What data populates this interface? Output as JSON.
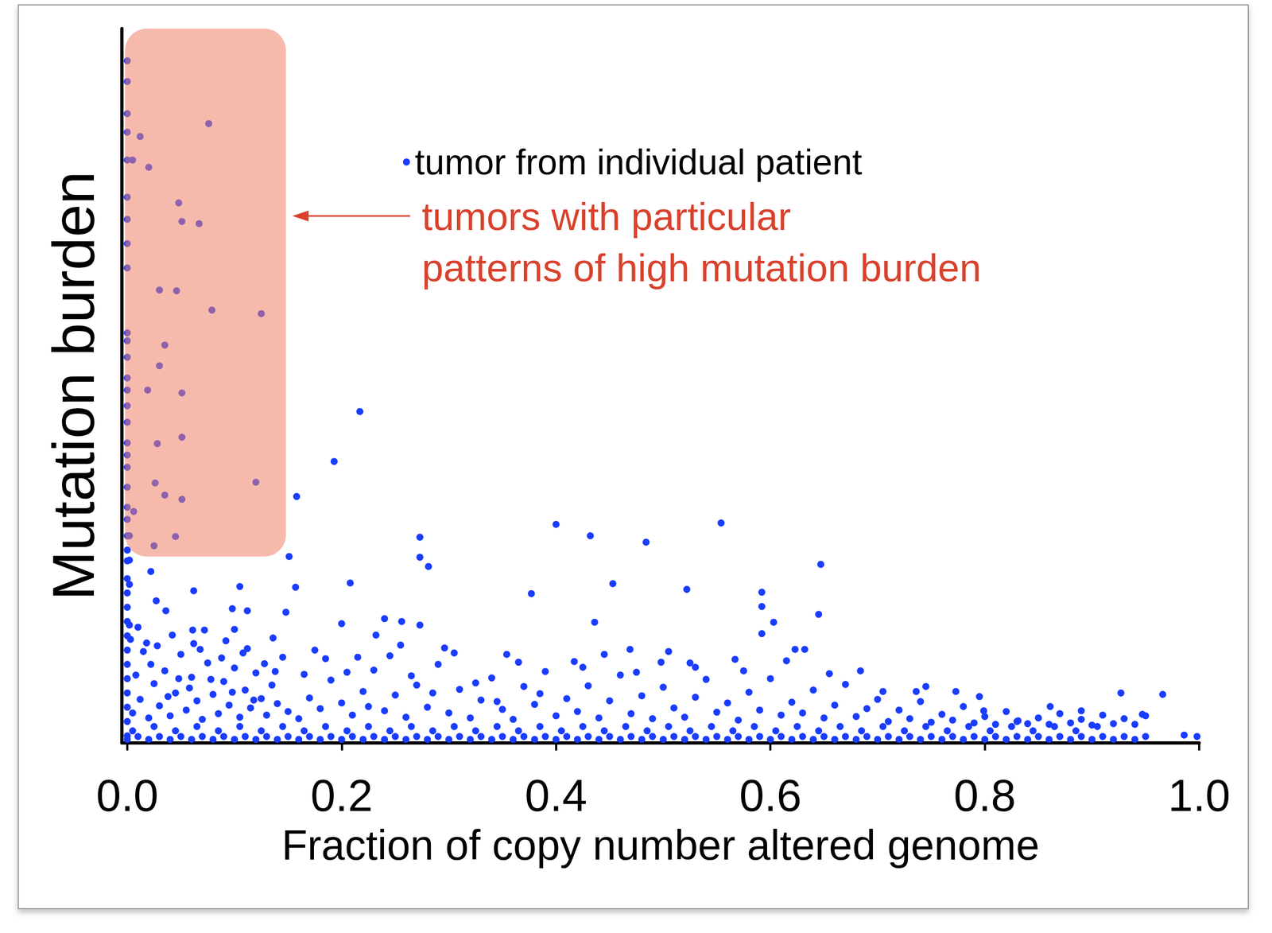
{
  "chart_data": {
    "type": "scatter",
    "xlabel": "Fraction of copy number altered genome",
    "ylabel": "Mutation burden",
    "xlim": [
      -0.005,
      1.0
    ],
    "xticks": [
      {
        "value": 0,
        "label": "0.0"
      },
      {
        "value": 0.2,
        "label": "0.2"
      },
      {
        "value": 0.4,
        "label": "0.4"
      },
      {
        "value": 0.6,
        "label": "0.6"
      },
      {
        "value": 0.8,
        "label": "0.8"
      },
      {
        "value": 1.0,
        "label": "1.0"
      }
    ],
    "ylim": [
      0,
      100
    ],
    "tick_labels": "x",
    "grid": false,
    "legend": "top",
    "annotations": [
      {
        "text": "tumors with particular\npatterns of high mutation burden",
        "color": "#d9412c",
        "x_range": [
          -0.002,
          0.148
        ],
        "y_range": [
          26.1,
          100
        ]
      }
    ],
    "series": [
      {
        "name": "tumor from individual patient",
        "color": "#1a3cff",
        "marker": "circle",
        "x": [
          0,
          0,
          0,
          0,
          0,
          0,
          0,
          0,
          0,
          0,
          0,
          0,
          0,
          0,
          0,
          0,
          0,
          0,
          0,
          0,
          0,
          0,
          0,
          0,
          0,
          0,
          0,
          0,
          0,
          0,
          0,
          0,
          0,
          0,
          0,
          0,
          0,
          0.076,
          0.012,
          0.005,
          0.02,
          0.048,
          0.051,
          0.067,
          0.03,
          0.046,
          0.079,
          0.125,
          0.035,
          0.03,
          0.019,
          0.051,
          0.028,
          0.051,
          0.026,
          0.035,
          0.051,
          0.12,
          0.045,
          0.025,
          0.006,
          0.217,
          0.193,
          0.158,
          0.151,
          0.273,
          0.273,
          0.281,
          0.208,
          0.157,
          0.062,
          0.105,
          0.4,
          0.432,
          0.484,
          0.554,
          0.647,
          0.453,
          0.522,
          0.377,
          0.592,
          0.592,
          0.645,
          0.436,
          0.592,
          0.603,
          0.022,
          0.027,
          0.036,
          0.098,
          0.112,
          0.148,
          0.2,
          0.24,
          0.256,
          0.273,
          0.002,
          0.002,
          0.002,
          0.002,
          0.061,
          0.1,
          0.136,
          0.232,
          0.296,
          0.354,
          0.417,
          0.469,
          0.498,
          0.53,
          0.567,
          0.623,
          0.632,
          0.684,
          0.736,
          0.773,
          0.927,
          0.966,
          0.947,
          0.89,
          0.861,
          0.831,
          0.799,
          0.986,
          0.998,
          0.005,
          0.012,
          0.02,
          0.025,
          0.03,
          0.035,
          0.04,
          0.045,
          0.05,
          0.055,
          0.06,
          0.065,
          0.07,
          0.075,
          0.08,
          0.085,
          0.09,
          0.095,
          0.1,
          0.105,
          0.11,
          0.115,
          0.12,
          0.125,
          0.13,
          0.135,
          0.14,
          0.145,
          0.15,
          0.008,
          0.015,
          0.022,
          0.028,
          0.038,
          0.048,
          0.058,
          0.068,
          0.078,
          0.088,
          0.098,
          0.108,
          0.118,
          0.003,
          0.01,
          0.018,
          0.042,
          0.062,
          0.072,
          0.092,
          0.112,
          0.128,
          0.138,
          0.16,
          0.17,
          0.18,
          0.19,
          0.2,
          0.21,
          0.22,
          0.23,
          0.24,
          0.25,
          0.26,
          0.27,
          0.28,
          0.29,
          0.3,
          0.31,
          0.32,
          0.33,
          0.34,
          0.35,
          0.36,
          0.37,
          0.38,
          0.39,
          0.4,
          0.165,
          0.185,
          0.205,
          0.225,
          0.245,
          0.265,
          0.285,
          0.305,
          0.325,
          0.345,
          0.365,
          0.385,
          0.175,
          0.215,
          0.255,
          0.41,
          0.42,
          0.43,
          0.44,
          0.45,
          0.46,
          0.47,
          0.48,
          0.49,
          0.5,
          0.51,
          0.52,
          0.53,
          0.54,
          0.55,
          0.56,
          0.57,
          0.58,
          0.59,
          0.6,
          0.61,
          0.62,
          0.63,
          0.64,
          0.65,
          0.66,
          0.67,
          0.68,
          0.69,
          0.7,
          0.425,
          0.475,
          0.525,
          0.575,
          0.615,
          0.655,
          0.445,
          0.505,
          0.71,
          0.72,
          0.73,
          0.74,
          0.75,
          0.76,
          0.77,
          0.78,
          0.79,
          0.8,
          0.81,
          0.82,
          0.83,
          0.84,
          0.85,
          0.86,
          0.87,
          0.88,
          0.89,
          0.9,
          0.91,
          0.92,
          0.93,
          0.94,
          0.95,
          0.705,
          0.745,
          0.795,
          0,
          0.01,
          0.02,
          0.03,
          0.04,
          0.05,
          0.06,
          0.07,
          0.08,
          0.09,
          0.1,
          0.11,
          0.12,
          0.13,
          0.14,
          0.15,
          0.16,
          0.17,
          0.18,
          0.19,
          0.2,
          0.21,
          0.22,
          0.23,
          0.24,
          0.25,
          0.26,
          0.27,
          0.28,
          0.29,
          0.3,
          0.31,
          0.32,
          0.33,
          0.34,
          0.35,
          0.36,
          0.37,
          0.38,
          0.39,
          0.4,
          0.41,
          0.42,
          0.43,
          0.44,
          0.45,
          0.46,
          0.47,
          0.48,
          0.49,
          0.5,
          0.51,
          0.52,
          0.53,
          0.54,
          0.55,
          0.56,
          0.57,
          0.58,
          0.59,
          0.6,
          0.61,
          0.62,
          0.63,
          0.64,
          0.65,
          0.66,
          0.67,
          0.68,
          0.69,
          0.7,
          0.71,
          0.72,
          0.73,
          0.74,
          0.75,
          0.76,
          0.77,
          0.78,
          0.79,
          0.8,
          0.81,
          0.82,
          0.83,
          0.84,
          0.85,
          0.86,
          0.87,
          0.88,
          0.89,
          0.9,
          0.91,
          0.92,
          0.93,
          0.94,
          0.95,
          0.005,
          0.025,
          0.045,
          0.065,
          0.085,
          0.105,
          0.125,
          0.145,
          0.165,
          0.185,
          0.205,
          0.225,
          0.245,
          0.265,
          0.285,
          0.305,
          0.325,
          0.345,
          0.365,
          0.385,
          0.405,
          0.425,
          0.445,
          0.465,
          0.485,
          0.505,
          0.525,
          0.545,
          0.565,
          0.585,
          0.605,
          0.625,
          0.645,
          0.665,
          0.685,
          0.705,
          0.725,
          0.745,
          0.765,
          0.785,
          0.805,
          0.825,
          0.845,
          0.865,
          0.885,
          0.905
        ],
        "values": [
          1,
          3,
          5,
          7,
          9,
          11,
          13,
          15,
          17,
          19,
          21,
          23,
          25.5,
          27,
          29,
          31.3,
          33,
          35.8,
          38.6,
          40.3,
          42,
          44.9,
          47.2,
          49.4,
          51.1,
          54,
          56.3,
          57.4,
          66.5,
          69.9,
          73.3,
          76.4,
          81.6,
          85.5,
          88.1,
          92.6,
          95.5,
          86.7,
          84.9,
          81.6,
          80.6,
          75.6,
          73,
          72.7,
          63.4,
          63.3,
          60.6,
          60.1,
          55.7,
          52.8,
          49.4,
          49,
          41.9,
          42.8,
          36.4,
          34.7,
          34.1,
          36.5,
          28.9,
          27.6,
          32.4,
          46.4,
          39.4,
          34.5,
          26.1,
          28.8,
          26,
          24.7,
          22.4,
          21.8,
          21.3,
          21.9,
          30.6,
          29,
          28.1,
          30.8,
          25,
          22.3,
          21.5,
          20.9,
          21.1,
          19.1,
          18,
          16.9,
          15.3,
          16.9,
          24,
          19.9,
          18.5,
          18.8,
          18.5,
          18.3,
          16.7,
          17.4,
          17,
          16.5,
          29,
          25.6,
          22.2,
          16.5,
          15.8,
          15.9,
          14.7,
          15.1,
          13.3,
          12.4,
          11.4,
          13.1,
          11.3,
          10.6,
          11.7,
          13.1,
          13.1,
          10.1,
          7.2,
          7.2,
          7,
          6.8,
          4,
          4.5,
          5.1,
          3.1,
          4.5,
          1.1,
          0.9,
          4.2,
          6.1,
          3.5,
          8.3,
          5.2,
          10.1,
          3.8,
          7.0,
          12.4,
          4.6,
          9.2,
          5.9,
          3.3,
          11.2,
          6.8,
          4.1,
          8.6,
          5.3,
          10.5,
          3.6,
          7.4,
          4.9,
          9.8,
          6.2,
          3.9,
          8.1,
          5.5,
          12.0,
          4.4,
          9.5,
          12.8,
          11.0,
          13.6,
          6.5,
          9.0,
          7.7,
          13.1,
          8.9,
          11.9,
          7.1,
          12.6,
          6.0,
          14.5,
          16.2,
          14.0,
          15.1,
          13.9,
          15.8,
          14.3,
          13.2,
          11.1,
          10.0,
          3.4,
          6.3,
          4.8,
          8.8,
          5.6,
          3.9,
          7.2,
          10.2,
          4.5,
          6.7,
          3.6,
          8.1,
          5.0,
          11.0,
          4.2,
          7.5,
          3.5,
          6.0,
          9.1,
          4.7,
          3.3,
          7.9,
          5.4,
          10.0,
          3.8,
          9.6,
          11.8,
          9.9,
          5.1,
          12.2,
          9.4,
          7.0,
          12.6,
          8.4,
          5.8,
          11.3,
          6.9,
          13.0,
          12.0,
          13.7,
          6.2,
          4.4,
          8.0,
          3.5,
          5.9,
          9.5,
          4.1,
          6.6,
          3.4,
          7.8,
          4.9,
          3.6,
          6.4,
          8.9,
          4.3,
          5.6,
          3.2,
          7.1,
          4.6,
          9.0,
          3.9,
          5.7,
          4.2,
          7.4,
          3.5,
          5.3,
          8.2,
          3.7,
          4.8,
          6.1,
          10.6,
          9.9,
          11.2,
          10.1,
          11.5,
          9.7,
          12.4,
          12.8,
          3.0,
          4.6,
          3.4,
          5.8,
          2.9,
          4.0,
          3.2,
          5.1,
          2.8,
          3.7,
          2.6,
          4.4,
          3.0,
          2.7,
          3.5,
          2.6,
          4.1,
          2.8,
          3.3,
          2.5,
          3.9,
          2.7,
          3.4,
          2.6,
          3.8,
          7.2,
          7.9,
          6.5,
          0.5,
          0.9,
          0.5,
          0.9,
          0.5,
          0.9,
          0.5,
          0.9,
          0.5,
          0.9,
          0.5,
          0.9,
          0.5,
          0.9,
          0.5,
          0.9,
          0.5,
          0.9,
          0.5,
          0.9,
          0.5,
          0.9,
          0.5,
          0.9,
          0.5,
          0.9,
          0.5,
          0.9,
          0.5,
          0.9,
          0.5,
          0.9,
          0.5,
          0.9,
          0.5,
          0.9,
          0.5,
          0.9,
          0.5,
          0.9,
          0.5,
          0.9,
          0.5,
          0.9,
          0.5,
          0.9,
          0.5,
          0.9,
          0.5,
          0.9,
          0.5,
          0.9,
          0.5,
          0.9,
          0.5,
          0.9,
          0.5,
          0.9,
          0.5,
          0.9,
          0.5,
          0.9,
          0.5,
          0.9,
          0.5,
          0.9,
          0.5,
          0.9,
          0.5,
          0.9,
          0.5,
          0.9,
          0.5,
          0.9,
          0.5,
          0.9,
          0.5,
          0.9,
          0.5,
          0.9,
          0.5,
          0.9,
          0.5,
          0.9,
          0.5,
          0.9,
          0.5,
          0.9,
          0.5,
          0.9,
          0.5,
          0.9,
          0.5,
          0.9,
          0.5,
          0.9,
          1.7,
          2.3,
          1.7,
          2.3,
          1.7,
          2.3,
          1.7,
          2.3,
          1.7,
          2.3,
          1.7,
          2.3,
          1.7,
          2.3,
          1.7,
          2.3,
          1.7,
          2.3,
          1.7,
          2.3,
          1.7,
          2.3,
          1.7,
          2.3,
          1.7,
          2.3,
          1.7,
          2.3,
          1.7,
          2.3,
          1.7,
          2.3,
          1.7,
          2.3,
          1.7,
          2.3,
          1.7,
          2.3,
          1.7,
          2.3,
          1.7,
          2.3,
          1.7,
          2.3,
          1.7,
          2.3
        ]
      }
    ]
  }
}
